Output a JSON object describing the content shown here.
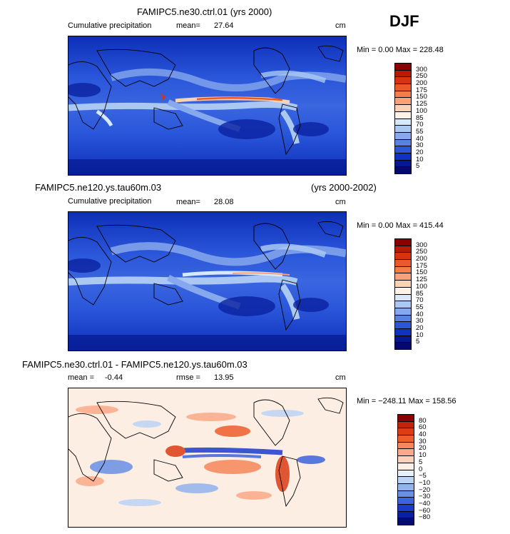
{
  "season": "DJF",
  "panels": [
    {
      "title": "FAMIPC5.ne30.ctrl.01 (yrs 2000)",
      "title_right": "",
      "subtitle": "Cumulative precipitation",
      "stat1_label": "mean=",
      "stat1_value": "27.64",
      "stat2_label": "",
      "stat2_value": "",
      "unit": "cm",
      "minmax": "Min =   0.00 Max = 228.48"
    },
    {
      "title": "FAMIPC5.ne120.ys.tau60m.03",
      "title_right": "(yrs 2000-2002)",
      "subtitle": "Cumulative precipitation",
      "stat1_label": "mean=",
      "stat1_value": "28.08",
      "stat2_label": "",
      "stat2_value": "",
      "unit": "cm",
      "minmax": "Min =   0.00 Max = 415.44"
    },
    {
      "title": "FAMIPC5.ne30.ctrl.01 - FAMIPC5.ne120.ys.tau60m.03",
      "title_right": "",
      "subtitle": "",
      "stat1_label": "mean =",
      "stat1_value": "-0.44",
      "stat2_label": "rmse =",
      "stat2_value": "13.95",
      "unit": "cm",
      "minmax": "Min = −248.11 Max = 158.56"
    }
  ],
  "chart_data": [
    {
      "type": "heatmap",
      "title": "FAMIPC5.ne30.ctrl.01 (yrs 2000)",
      "colorbar": {
        "levels": [
          "300",
          "250",
          "200",
          "175",
          "150",
          "125",
          "100",
          "85",
          "70",
          "55",
          "40",
          "30",
          "20",
          "10",
          "5"
        ],
        "colors": [
          "#8b0000",
          "#b81a08",
          "#d8330f",
          "#ea5a26",
          "#f47e4a",
          "#f9a27a",
          "#fcd2b4",
          "#fff2e6",
          "#d8e8fb",
          "#aac8f2",
          "#86a8ec",
          "#5a82e2",
          "#2a56da",
          "#0d32c4",
          "#06188f",
          "#040870"
        ]
      }
    },
    {
      "type": "heatmap",
      "title": "FAMIPC5.ne120.ys.tau60m.03",
      "colorbar": {
        "levels": [
          "300",
          "250",
          "200",
          "175",
          "150",
          "125",
          "100",
          "85",
          "70",
          "55",
          "40",
          "30",
          "20",
          "10",
          "5"
        ],
        "colors": [
          "#8b0000",
          "#b81a08",
          "#d8330f",
          "#ea5a26",
          "#f47e4a",
          "#f9a27a",
          "#fcd2b4",
          "#fff2e6",
          "#d8e8fb",
          "#aac8f2",
          "#86a8ec",
          "#5a82e2",
          "#2a56da",
          "#0d32c4",
          "#06188f",
          "#040870"
        ]
      }
    },
    {
      "type": "heatmap",
      "title": "FAMIPC5.ne30.ctrl.01 - FAMIPC5.ne120.ys.tau60m.03",
      "colorbar": {
        "levels": [
          "80",
          "60",
          "40",
          "30",
          "20",
          "10",
          "5",
          "0",
          "−5",
          "−10",
          "−20",
          "−30",
          "−40",
          "−60",
          "−80"
        ],
        "colors": [
          "#8b0000",
          "#c0240a",
          "#dd3c14",
          "#ef5d2c",
          "#f7875a",
          "#fba989",
          "#fdd0bb",
          "#fff0e6",
          "#e6f0fc",
          "#bcd4f6",
          "#92b4ee",
          "#6a90e6",
          "#3c64dc",
          "#1a3ccc",
          "#0a1ea6",
          "#040a78"
        ]
      }
    }
  ]
}
